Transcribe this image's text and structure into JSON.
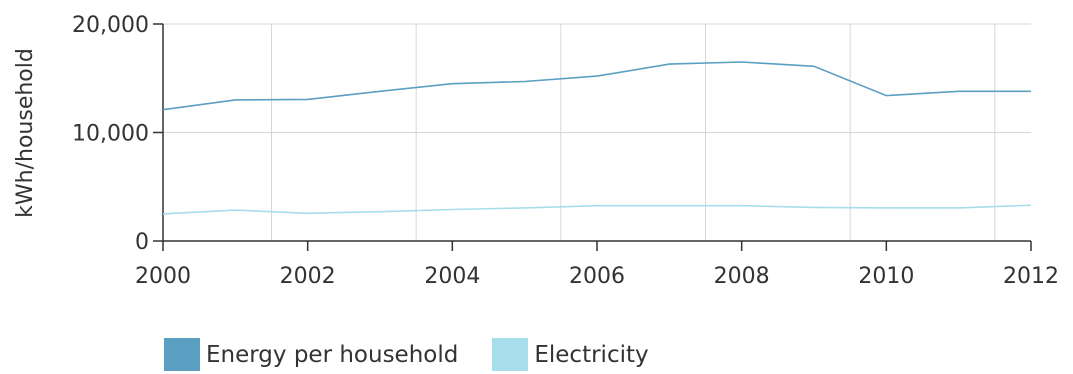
{
  "chart_data": {
    "type": "line",
    "x": [
      2000,
      2001,
      2002,
      2003,
      2004,
      2005,
      2006,
      2007,
      2008,
      2009,
      2010,
      2011,
      2012
    ],
    "series": [
      {
        "name": "Energy per household",
        "color": "#5b9fc2",
        "values": [
          12100,
          13000,
          13050,
          13800,
          14500,
          14700,
          15200,
          16300,
          16500,
          16100,
          13400,
          13800,
          13800
        ]
      },
      {
        "name": "Electricity",
        "color": "#a8ddec",
        "values": [
          2500,
          2850,
          2550,
          2700,
          2900,
          3050,
          3250,
          3250,
          3250,
          3100,
          3050,
          3050,
          3300
        ]
      }
    ],
    "xticks": [
      "2000",
      "2002",
      "2004",
      "2006",
      "2008",
      "2010",
      "2012"
    ],
    "yticks": [
      "0",
      "10,000",
      "20,000"
    ],
    "ylabel": "kWh/household",
    "xlim": [
      2000,
      2012
    ],
    "ylim": [
      0,
      20000
    ],
    "grid": true,
    "legend_position": "bottom-left"
  }
}
